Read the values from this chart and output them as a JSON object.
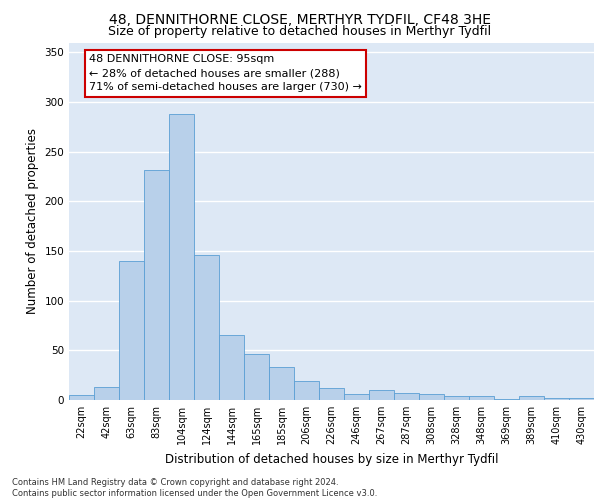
{
  "title1": "48, DENNITHORNE CLOSE, MERTHYR TYDFIL, CF48 3HE",
  "title2": "Size of property relative to detached houses in Merthyr Tydfil",
  "xlabel": "Distribution of detached houses by size in Merthyr Tydfil",
  "ylabel": "Number of detached properties",
  "categories": [
    "22sqm",
    "42sqm",
    "63sqm",
    "83sqm",
    "104sqm",
    "124sqm",
    "144sqm",
    "165sqm",
    "185sqm",
    "206sqm",
    "226sqm",
    "246sqm",
    "267sqm",
    "287sqm",
    "308sqm",
    "328sqm",
    "348sqm",
    "369sqm",
    "389sqm",
    "410sqm",
    "430sqm"
  ],
  "values": [
    5,
    13,
    140,
    232,
    288,
    146,
    65,
    46,
    33,
    19,
    12,
    6,
    10,
    7,
    6,
    4,
    4,
    1,
    4,
    2,
    2
  ],
  "bar_color": "#b8d0ea",
  "bar_edge_color": "#5a9fd4",
  "background_color": "#dde8f5",
  "grid_color": "#ffffff",
  "annotation_box_text": "48 DENNITHORNE CLOSE: 95sqm\n← 28% of detached houses are smaller (288)\n71% of semi-detached houses are larger (730) →",
  "annotation_box_color": "#ffffff",
  "annotation_box_edge_color": "#cc0000",
  "footer_text": "Contains HM Land Registry data © Crown copyright and database right 2024.\nContains public sector information licensed under the Open Government Licence v3.0.",
  "ylim": [
    0,
    360
  ],
  "yticks": [
    0,
    50,
    100,
    150,
    200,
    250,
    300,
    350
  ],
  "title_fontsize": 10,
  "subtitle_fontsize": 9,
  "tick_fontsize": 7,
  "axis_label_fontsize": 8.5,
  "footer_fontsize": 6,
  "annotation_fontsize": 8
}
